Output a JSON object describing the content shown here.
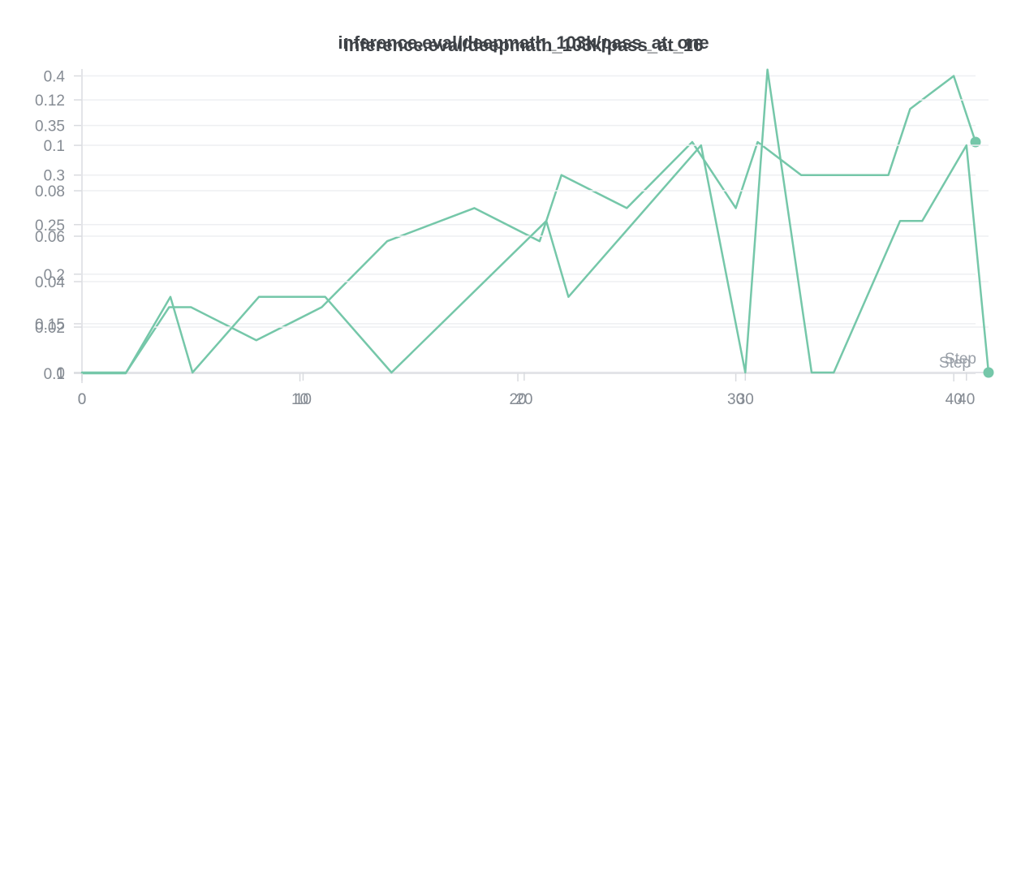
{
  "chart_data": [
    {
      "type": "line",
      "title": "inference.eval/deepmath_103k/pass_at_16",
      "xlabel": "Step",
      "ylabel": "",
      "xlim": [
        0,
        41
      ],
      "ylim": [
        0.1,
        0.407
      ],
      "x_ticks": [
        0,
        10,
        20,
        30,
        40
      ],
      "x_tick_labels": [
        "0",
        "10",
        "20",
        "30",
        "40"
      ],
      "y_ticks": [
        0.1,
        0.15,
        0.2,
        0.25,
        0.3,
        0.35,
        0.4
      ],
      "y_tick_labels": [
        "0.1",
        "0.15",
        "0.2",
        "0.25",
        "0.3",
        "0.35",
        "0.4"
      ],
      "grid": true,
      "legend": "none",
      "line_color": "#75c7a9",
      "end_marker": true,
      "series": [
        {
          "name": "pass_at_16",
          "points": [
            [
              0,
              0.1
            ],
            [
              2,
              0.1
            ],
            [
              4,
              0.1667
            ],
            [
              5,
              0.1667
            ],
            [
              8,
              0.1333
            ],
            [
              11,
              0.1667
            ],
            [
              14,
              0.2333
            ],
            [
              18,
              0.2667
            ],
            [
              21,
              0.2333
            ],
            [
              22,
              0.3
            ],
            [
              25,
              0.2667
            ],
            [
              28,
              0.3333
            ],
            [
              30,
              0.2667
            ],
            [
              31,
              0.3333
            ],
            [
              33,
              0.3
            ],
            [
              37,
              0.3
            ],
            [
              38,
              0.3667
            ],
            [
              40,
              0.4
            ],
            [
              41,
              0.3333
            ]
          ]
        }
      ]
    },
    {
      "type": "line",
      "title": "inference.eval/deepmath_103k/pass_at_one",
      "xlabel": "Step",
      "ylabel": "",
      "xlim": [
        0,
        41
      ],
      "ylim": [
        0,
        0.1336
      ],
      "x_ticks": [
        0,
        10,
        20,
        30,
        40
      ],
      "x_tick_labels": [
        "0",
        "10",
        "20",
        "30",
        "40"
      ],
      "y_ticks": [
        0,
        0.02,
        0.04,
        0.06,
        0.08,
        0.1,
        0.12
      ],
      "y_tick_labels": [
        "0",
        "0.02",
        "0.04",
        "0.06",
        "0.08",
        "0.1",
        "0.12"
      ],
      "grid": true,
      "legend": "none",
      "line_color": "#75c7a9",
      "end_marker": true,
      "series": [
        {
          "name": "pass_at_one",
          "points": [
            [
              0,
              0
            ],
            [
              2,
              0
            ],
            [
              4,
              0.0333
            ],
            [
              5,
              0
            ],
            [
              8,
              0.0333
            ],
            [
              11,
              0.0333
            ],
            [
              14,
              0
            ],
            [
              21,
              0.0667
            ],
            [
              22,
              0.0333
            ],
            [
              28,
              0.1
            ],
            [
              30,
              0
            ],
            [
              31,
              0.1333
            ],
            [
              33,
              0
            ],
            [
              34,
              0
            ],
            [
              37,
              0.0667
            ],
            [
              38,
              0.0667
            ],
            [
              40,
              0.1
            ],
            [
              41,
              0
            ]
          ]
        }
      ]
    }
  ],
  "colors": {
    "background": "#ffffff",
    "line": "#75c7a9",
    "title_text": "#3e4247",
    "tick_text": "#858b93",
    "step_text": "#9aa0a8",
    "grid": "#eeeff2",
    "axis": "#e3e4e8",
    "tick_mark": "#d9dbdf"
  }
}
